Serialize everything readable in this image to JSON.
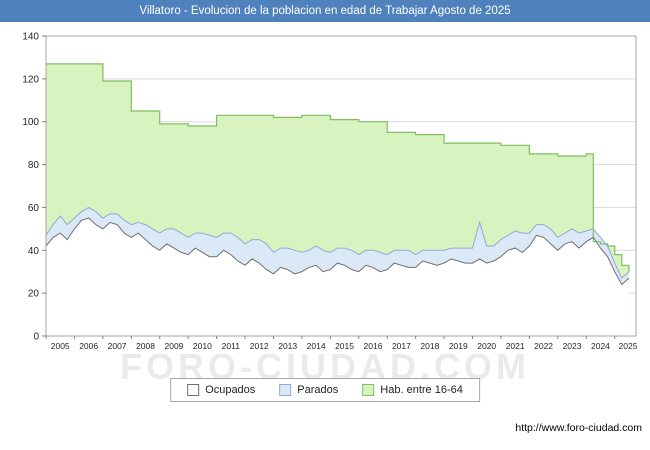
{
  "title_bar": {
    "title": "Villatoro - Evolucion de la poblacion en edad de Trabajar Agosto de 2025",
    "bg_color": "#4f81bd",
    "text_color": "#ffffff"
  },
  "watermark": "FORO-CIUDAD.COM",
  "footer": {
    "url": "http://www.foro-ciudad.com"
  },
  "legend": {
    "items": [
      {
        "label": "Ocupados",
        "fill": "#ffffff",
        "stroke": "#6e6e6e"
      },
      {
        "label": "Parados",
        "fill": "#dbe9f7",
        "stroke": "#8cabd4"
      },
      {
        "label": "Hab. entre 16-64",
        "fill": "#d9f3c0",
        "stroke": "#7fbf5f"
      }
    ]
  },
  "chart_data": {
    "type": "area",
    "title": "Villatoro - Evolucion de la poblacion en edad de Trabajar Agosto de 2025",
    "x_start": 2005,
    "x_step": 0.25,
    "x_axis_years": [
      2005,
      2006,
      2007,
      2008,
      2009,
      2010,
      2011,
      2012,
      2013,
      2014,
      2015,
      2016,
      2017,
      2018,
      2019,
      2020,
      2021,
      2022,
      2023,
      2024,
      2025
    ],
    "ylim": [
      0,
      140
    ],
    "yticks": [
      0,
      20,
      40,
      60,
      80,
      100,
      120,
      140
    ],
    "grid": true,
    "legend_position": "bottom",
    "series": [
      {
        "name": "Hab. entre 16-64",
        "mode": "step",
        "fill": "#d9f3c0",
        "stroke": "#7fbf5f",
        "values": [
          127,
          127,
          127,
          127,
          127,
          127,
          127,
          127,
          119,
          119,
          119,
          119,
          105,
          105,
          105,
          105,
          99,
          99,
          99,
          99,
          98,
          98,
          98,
          98,
          103,
          103,
          103,
          103,
          103,
          103,
          103,
          103,
          102,
          102,
          102,
          102,
          103,
          103,
          103,
          103,
          101,
          101,
          101,
          101,
          100,
          100,
          100,
          100,
          95,
          95,
          95,
          95,
          94,
          94,
          94,
          94,
          90,
          90,
          90,
          90,
          90,
          90,
          90,
          90,
          89,
          89,
          89,
          89,
          85,
          85,
          85,
          85,
          84,
          84,
          84,
          84,
          85,
          44,
          43,
          42,
          38,
          33,
          30
        ]
      },
      {
        "name": "Parados",
        "mode": "stacked-on-ocupados",
        "fill": "#dbe9f7",
        "stroke": "#8cabd4",
        "values": [
          5,
          6,
          8,
          7,
          5,
          4,
          5,
          6,
          5,
          4,
          5,
          6,
          6,
          5,
          7,
          8,
          8,
          7,
          9,
          9,
          8,
          7,
          9,
          10,
          9,
          8,
          10,
          11,
          10,
          9,
          11,
          12,
          10,
          9,
          10,
          11,
          9,
          8,
          9,
          10,
          8,
          7,
          8,
          9,
          8,
          7,
          8,
          9,
          7,
          6,
          7,
          8,
          6,
          5,
          6,
          7,
          6,
          5,
          6,
          7,
          7,
          17,
          8,
          7,
          8,
          7,
          8,
          9,
          6,
          5,
          6,
          7,
          6,
          5,
          6,
          7,
          5,
          4,
          5,
          5,
          4,
          3,
          3
        ]
      },
      {
        "name": "Ocupados",
        "mode": "line",
        "fill": "#ffffff",
        "stroke": "#6e6e6e",
        "values": [
          42,
          46,
          48,
          45,
          50,
          54,
          55,
          52,
          50,
          53,
          52,
          48,
          46,
          48,
          45,
          42,
          40,
          43,
          41,
          39,
          38,
          41,
          39,
          37,
          37,
          40,
          38,
          35,
          33,
          36,
          34,
          31,
          29,
          32,
          31,
          29,
          30,
          32,
          33,
          30,
          31,
          34,
          33,
          31,
          30,
          33,
          32,
          30,
          31,
          34,
          33,
          32,
          32,
          35,
          34,
          33,
          34,
          36,
          35,
          34,
          34,
          36,
          34,
          35,
          37,
          40,
          41,
          39,
          42,
          47,
          46,
          43,
          40,
          43,
          44,
          41,
          44,
          46,
          41,
          37,
          30,
          24,
          27
        ]
      }
    ]
  }
}
